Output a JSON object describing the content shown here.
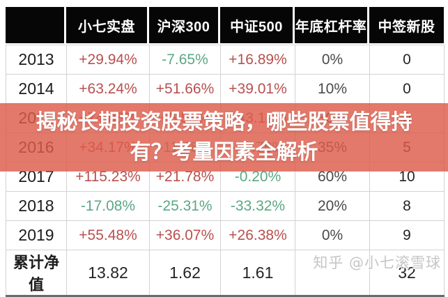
{
  "table": {
    "columns": [
      "",
      "小七实盘",
      "沪深300",
      "中证500",
      "年底杠杆率",
      "中签新股"
    ],
    "rows": [
      {
        "label": "2013",
        "cells": [
          {
            "text": "+29.94%",
            "tone": "up"
          },
          {
            "text": "-7.65%",
            "tone": "down"
          },
          {
            "text": "+16.89%",
            "tone": "up"
          },
          {
            "text": "0%",
            "tone": "muted"
          },
          {
            "text": "0",
            "tone": "plain"
          }
        ]
      },
      {
        "label": "2014",
        "cells": [
          {
            "text": "+63.24%",
            "tone": "up"
          },
          {
            "text": "+51.66%",
            "tone": "up"
          },
          {
            "text": "+39.01%",
            "tone": "up"
          },
          {
            "text": "10%",
            "tone": "muted"
          },
          {
            "text": "0",
            "tone": "plain"
          }
        ]
      },
      {
        "label": "2015",
        "cells": [
          {
            "text": "+74.88%",
            "tone": "up"
          },
          {
            "text": "+5.58%",
            "tone": "up"
          },
          {
            "text": "+43.12%",
            "tone": "up"
          },
          {
            "text": "30%",
            "tone": "muted"
          },
          {
            "text": "0",
            "tone": "plain"
          }
        ]
      },
      {
        "label": "2016",
        "cells": [
          {
            "text": "+34.17%",
            "tone": "up"
          },
          {
            "text": "-11.28%",
            "tone": "down"
          },
          {
            "text": "-17.78%",
            "tone": "down"
          },
          {
            "text": "35%",
            "tone": "muted"
          },
          {
            "text": "5",
            "tone": "plain"
          }
        ]
      },
      {
        "label": "2017",
        "cells": [
          {
            "text": "+115.23%",
            "tone": "up"
          },
          {
            "text": "+21.78%",
            "tone": "up"
          },
          {
            "text": "-0.20%",
            "tone": "down"
          },
          {
            "text": "60%",
            "tone": "muted"
          },
          {
            "text": "10",
            "tone": "plain"
          }
        ]
      },
      {
        "label": "2018",
        "cells": [
          {
            "text": "-17.08%",
            "tone": "down"
          },
          {
            "text": "-25.31%",
            "tone": "down"
          },
          {
            "text": "-33.32%",
            "tone": "down"
          },
          {
            "text": "20%",
            "tone": "muted"
          },
          {
            "text": "8",
            "tone": "plain"
          }
        ]
      },
      {
        "label": "2019",
        "cells": [
          {
            "text": "+55.48%",
            "tone": "up"
          },
          {
            "text": "+36.07%",
            "tone": "up"
          },
          {
            "text": "+26.38%",
            "tone": "up"
          },
          {
            "text": "0%",
            "tone": "muted"
          },
          {
            "text": "9",
            "tone": "plain"
          }
        ]
      },
      {
        "label": "累计净值",
        "cells": [
          {
            "text": "13.82",
            "tone": "plain"
          },
          {
            "text": "1.62",
            "tone": "plain"
          },
          {
            "text": "1.61",
            "tone": "plain"
          },
          {
            "text": "",
            "tone": "plain"
          },
          {
            "text": "32",
            "tone": "plain"
          }
        ]
      }
    ]
  },
  "banner": {
    "line1": "揭秘长期投资股票策略，哪些股票值得持",
    "line2": "有？考量因素全解析",
    "bg_color": "#DD5C4A"
  },
  "watermark": "知乎 @小七滚雪球",
  "colors": {
    "positive": "#B8504E",
    "negative": "#5BA785",
    "header_bg": "#060606"
  }
}
